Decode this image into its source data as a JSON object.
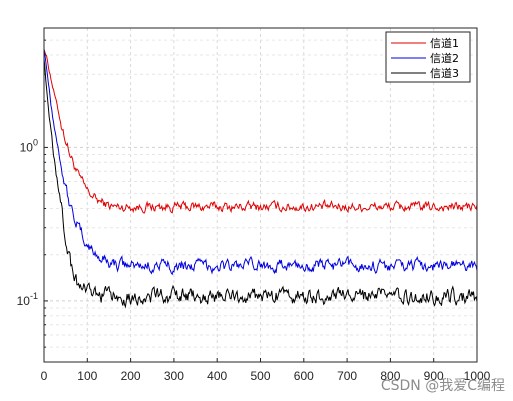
{
  "chart_data": {
    "type": "line",
    "title": "",
    "xlabel": "",
    "ylabel": "",
    "xlim": [
      0,
      1000
    ],
    "ylim": [
      0.04,
      6
    ],
    "yscale": "log",
    "grid": true,
    "legend_position": "top-right",
    "x_ticks": [
      "0",
      "100",
      "200",
      "300",
      "400",
      "500",
      "600",
      "700",
      "800",
      "900",
      "1000"
    ],
    "y_ticks": [
      {
        "base": "10",
        "exp": "0"
      },
      {
        "base": "10",
        "exp": "-1"
      }
    ],
    "series": [
      {
        "name": "信道1",
        "color": "#e00000",
        "x": [
          0,
          5,
          20,
          40,
          60,
          80,
          100,
          120,
          140,
          160,
          200,
          300,
          400,
          500,
          600,
          700,
          800,
          900,
          1000
        ],
        "y": [
          4.5,
          4.0,
          2.5,
          1.4,
          0.9,
          0.65,
          0.52,
          0.46,
          0.43,
          0.41,
          0.41,
          0.41,
          0.41,
          0.41,
          0.41,
          0.41,
          0.41,
          0.41,
          0.41
        ]
      },
      {
        "name": "信道2",
        "color": "#0000e0",
        "x": [
          0,
          5,
          20,
          40,
          60,
          80,
          100,
          120,
          140,
          160,
          200,
          300,
          400,
          500,
          600,
          700,
          800,
          900,
          1000
        ],
        "y": [
          4.5,
          3.5,
          1.6,
          0.75,
          0.42,
          0.3,
          0.23,
          0.2,
          0.185,
          0.175,
          0.17,
          0.17,
          0.17,
          0.17,
          0.17,
          0.17,
          0.17,
          0.17,
          0.17
        ]
      },
      {
        "name": "信道3",
        "color": "#000000",
        "x": [
          0,
          5,
          20,
          40,
          60,
          80,
          100,
          120,
          140,
          160,
          200,
          300,
          400,
          500,
          600,
          700,
          800,
          900,
          1000
        ],
        "y": [
          4.0,
          2.5,
          1.0,
          0.4,
          0.18,
          0.125,
          0.112,
          0.11,
          0.108,
          0.107,
          0.107,
          0.107,
          0.107,
          0.107,
          0.107,
          0.107,
          0.107,
          0.107,
          0.107
        ]
      }
    ]
  },
  "watermark": "CSDN @我爱C编程"
}
